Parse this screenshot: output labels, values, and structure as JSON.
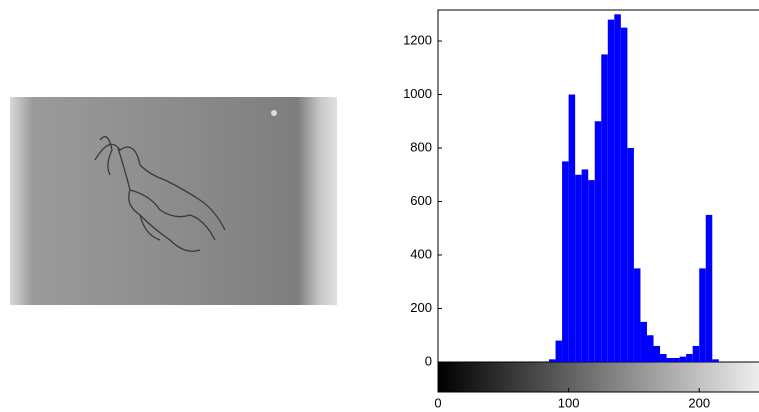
{
  "chart_data": {
    "type": "histogram",
    "bins": [
      80,
      85,
      90,
      95,
      100,
      105,
      110,
      115,
      120,
      125,
      130,
      135,
      140,
      145,
      150,
      155,
      160,
      165,
      170,
      175,
      180,
      185,
      190,
      195,
      200,
      205,
      210,
      215
    ],
    "values": [
      0,
      10,
      80,
      750,
      1000,
      700,
      720,
      680,
      900,
      1150,
      1280,
      1300,
      1250,
      800,
      350,
      150,
      100,
      60,
      30,
      15,
      15,
      20,
      30,
      60,
      350,
      550,
      10
    ],
    "color": "#0000ff",
    "xlim": [
      0,
      245
    ],
    "xticks": [
      0,
      100,
      200
    ],
    "ylim": [
      0,
      1316
    ],
    "yticks": [
      0,
      200,
      400,
      600,
      800,
      1000,
      1200
    ]
  }
}
